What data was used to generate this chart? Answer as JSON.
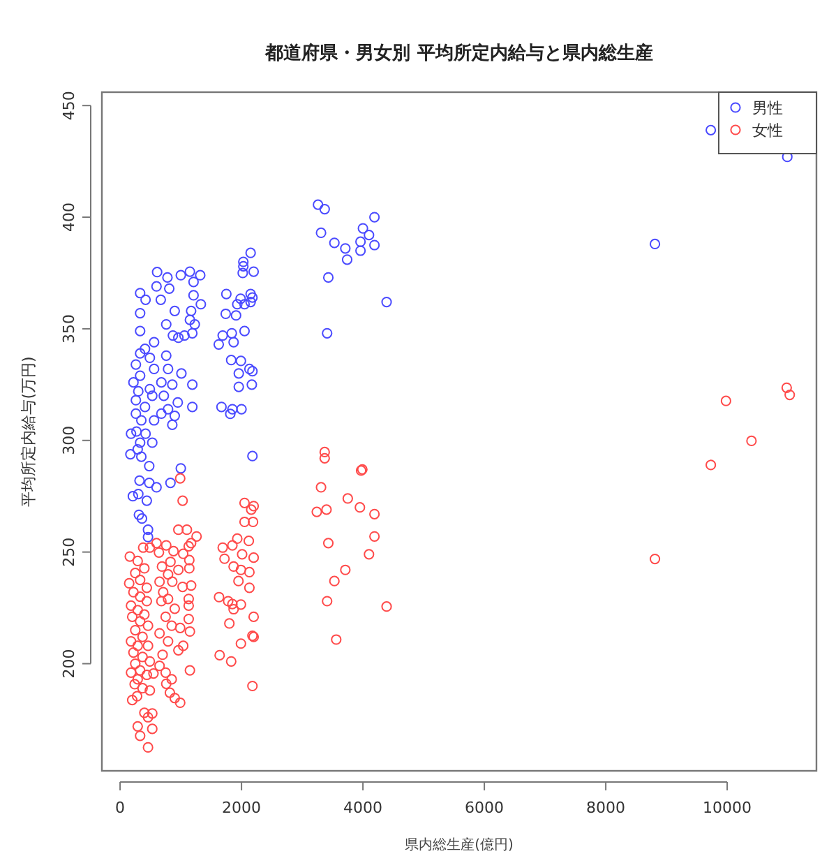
{
  "chart_data": {
    "type": "scatter",
    "title": "都道府県・男女別 平均所定内給与と県内総生産",
    "xlabel": "県内総生産(億円)",
    "ylabel": "平均所定内給与(万円)",
    "xlim": [
      -300,
      11470
    ],
    "ylim": [
      152,
      456
    ],
    "xticks": [
      0,
      2000,
      4000,
      6000,
      8000,
      10000
    ],
    "yticks": [
      200,
      250,
      300,
      350,
      400,
      450
    ],
    "grid": false,
    "legend": "top right",
    "marker": "circle",
    "series": [
      {
        "name": "男性",
        "color": "#4a4aff",
        "x": [
          3260,
          3370,
          3310,
          3530,
          3710,
          3740,
          3430,
          3410,
          4000,
          4100,
          3960,
          3960,
          4190,
          4190,
          4390,
          2150,
          2030,
          2030,
          2200,
          2020,
          1750,
          1985,
          2150,
          2180,
          2050,
          2150,
          1930,
          1740,
          1910,
          1625,
          1690,
          1840,
          1870,
          2050,
          1830,
          1990,
          1955,
          2130,
          2180,
          1955,
          2170,
          1670,
          1815,
          2000,
          1850,
          2180,
          610,
          780,
          1150,
          1320,
          1000,
          1210,
          600,
          810,
          330,
          420,
          670,
          1330,
          1210,
          330,
          900,
          1170,
          1230,
          1150,
          760,
          870,
          960,
          1060,
          1190,
          330,
          560,
          410,
          330,
          760,
          490,
          260,
          560,
          790,
          1010,
          330,
          680,
          860,
          1190,
          220,
          490,
          300,
          530,
          720,
          950,
          1190,
          260,
          410,
          790,
          680,
          900,
          260,
          350,
          560,
          860,
          270,
          420,
          180,
          330,
          530,
          290,
          170,
          350,
          480,
          320,
          480,
          600,
          210,
          300,
          440,
          310,
          360,
          460,
          460,
          1000,
          830,
          9730,
          10990,
          8810
        ],
        "values": [
          405.6,
          403.6,
          393,
          388.5,
          386,
          381,
          373,
          348,
          395,
          392,
          389,
          385,
          387.5,
          400,
          362,
          384,
          380,
          378,
          375.6,
          375,
          365.6,
          363.5,
          365.6,
          364,
          361,
          362,
          361,
          356.7,
          356,
          343,
          347,
          348,
          344,
          349,
          336,
          335.6,
          330,
          332,
          331,
          324,
          325,
          315,
          311.9,
          314,
          314,
          293,
          375.4,
          373,
          375.6,
          374,
          374,
          371,
          369,
          368,
          366,
          363,
          363,
          361,
          365,
          357,
          358,
          358,
          352,
          354,
          352,
          347,
          346,
          347,
          348,
          349,
          344,
          341,
          339,
          338,
          337,
          334,
          332,
          332,
          330,
          329,
          326,
          325,
          325,
          326,
          323,
          322,
          320,
          320,
          317,
          315,
          318,
          315,
          314,
          312,
          311,
          312,
          309,
          309,
          307,
          304,
          303,
          303,
          299,
          299,
          296,
          293.8,
          292.7,
          288.5,
          282,
          281,
          279,
          275,
          276,
          273,
          266.7,
          265,
          260,
          256.7,
          287.5,
          281,
          439,
          427,
          388
        ]
      },
      {
        "name": "女性",
        "color": "#ff4a4a",
        "x": [
          9980,
          10980,
          11030,
          10400,
          9730,
          8810,
          3370,
          3370,
          3310,
          3240,
          3400,
          3750,
          3970,
          3990,
          3950,
          4190,
          4190,
          3430,
          4100,
          3710,
          3530,
          3410,
          4390,
          3560,
          2050,
          2160,
          2200,
          2050,
          2190,
          1930,
          2120,
          1690,
          1850,
          2010,
          1720,
          2200,
          1870,
          1990,
          2130,
          1950,
          2130,
          1630,
          1780,
          1850,
          1990,
          1870,
          1800,
          2200,
          2180,
          2200,
          1990,
          1640,
          1830,
          2180,
          990,
          1030,
          960,
          1100,
          1260,
          1170,
          1130,
          1040,
          1140,
          1140,
          1170,
          1030,
          1130,
          1130,
          1130,
          990,
          1150,
          1040,
          960,
          1150,
          990,
          900,
          820,
          760,
          850,
          750,
          650,
          700,
          790,
          650,
          850,
          750,
          900,
          680,
          790,
          710,
          860,
          650,
          790,
          960,
          690,
          830,
          640,
          880,
          760,
          600,
          490,
          380,
          160,
          290,
          400,
          250,
          330,
          150,
          440,
          220,
          330,
          440,
          180,
          290,
          400,
          200,
          330,
          460,
          250,
          370,
          180,
          290,
          460,
          220,
          370,
          490,
          250,
          330,
          180,
          440,
          290,
          550,
          240,
          370,
          490,
          200,
          280,
          400,
          290,
          530,
          460,
          530,
          330,
          460
        ],
        "values": [
          317.7,
          323.6,
          320.4,
          299.8,
          289,
          246.9,
          294.8,
          292,
          279,
          268,
          269,
          274,
          286.5,
          287,
          270,
          267,
          257,
          254,
          249,
          242,
          237,
          228,
          225.6,
          210.8,
          272,
          269,
          270.6,
          263.5,
          263.5,
          256,
          255,
          252,
          253,
          249,
          247,
          247.5,
          243.5,
          242,
          241,
          237,
          234,
          229.8,
          228,
          226.7,
          226.5,
          224.4,
          218,
          221,
          212.5,
          212,
          209,
          203.8,
          201,
          190,
          283,
          273,
          260,
          260,
          257,
          254,
          252.6,
          249.2,
          246.4,
          242.7,
          235,
          234.4,
          229,
          226,
          220,
          216,
          214.4,
          208,
          206,
          197,
          182.5,
          184.6,
          187,
          191,
          193,
          196,
          199,
          204,
          210,
          213.6,
          217,
          221,
          224.6,
          228,
          229,
          232,
          236.7,
          236.7,
          240,
          242,
          243.5,
          245.6,
          249.8,
          250.4,
          253,
          254,
          252,
          252,
          248,
          246,
          242.7,
          240.6,
          237.5,
          236,
          234,
          232,
          230,
          228,
          226,
          224,
          222,
          221,
          219,
          217,
          215,
          212,
          210,
          208,
          208,
          205,
          203,
          201,
          200,
          197,
          196,
          195,
          193,
          195.6,
          190.8,
          189,
          188,
          183.7,
          185.4,
          178,
          171.9,
          177.7,
          176,
          170.8,
          167.7,
          162.5
        ]
      }
    ]
  }
}
